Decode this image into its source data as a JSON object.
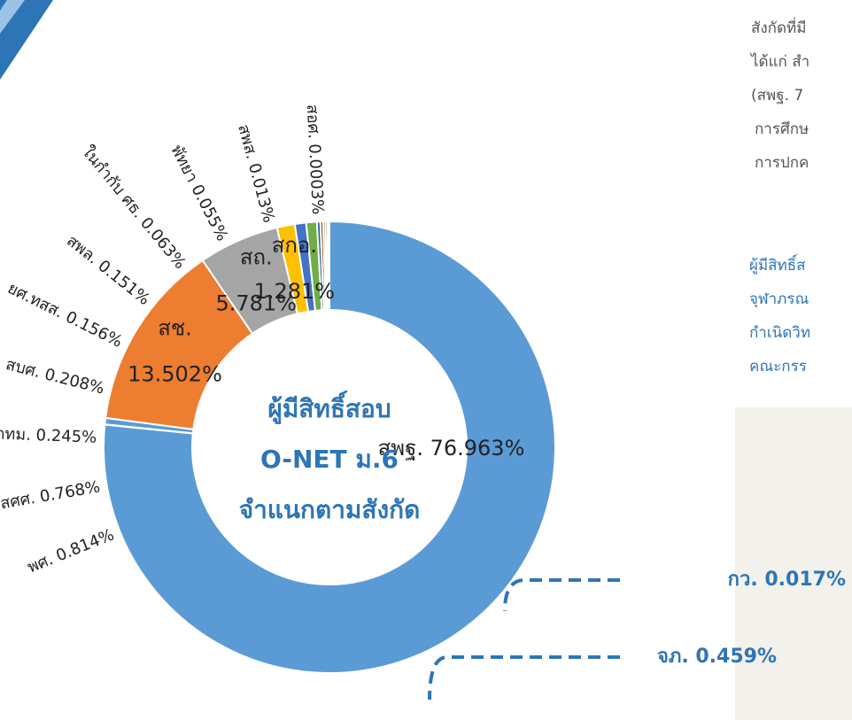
{
  "chart_data": {
    "type": "pie",
    "title": [
      "ผู้มีสิทธิ์สอบ",
      "O-NET ม.6",
      "จำแนกตามสังกัด"
    ],
    "categories": [
      "สพฐ.",
      "กว.",
      "จภ.",
      "สช.",
      "สถ.",
      "สกอ.",
      "พศ.",
      "สศศ.",
      "กทม.",
      "สบศ.",
      "ยศ.ทสส.",
      "สพล.",
      "ในกำกับ ศธ.",
      "พัทยา",
      "สพส.",
      "สอศ."
    ],
    "values": [
      76.963,
      0.017,
      0.459,
      13.502,
      5.781,
      1.281,
      0.814,
      0.768,
      0.245,
      0.208,
      0.156,
      0.151,
      0.063,
      0.055,
      0.013,
      0.0003
    ],
    "value_labels": [
      "76.963%",
      "0.017%",
      "0.459%",
      "13.502%",
      "5.781%",
      "1.281%",
      "0.814%",
      "0.768%",
      "0.245%",
      "0.208%",
      "0.156%",
      "0.151%",
      "0.063%",
      "0.055%",
      "0.013%",
      "0.0003%"
    ],
    "colors": [
      "#5b9bd5",
      "#5b9bd5",
      "#5b9bd5",
      "#ed7d31",
      "#a5a5a5",
      "#ffc000",
      "#4472c4",
      "#70ad47",
      "#255e91",
      "#9e480e",
      "#636363",
      "#997300",
      "#264478",
      "#43682b",
      "#7cafdd",
      "#f1975a"
    ]
  },
  "side_text": {
    "paragraph_1": [
      "สังกัดที่มี",
      "ได้แก่ สำ",
      "(สพฐ. 7",
      "การศึกษ",
      "การปกค"
    ],
    "paragraph_2": [
      "ผู้มีสิทธิ์ส",
      "จุฬาภรณ",
      "กำเนิดวิท",
      "คณะกรร"
    ]
  }
}
